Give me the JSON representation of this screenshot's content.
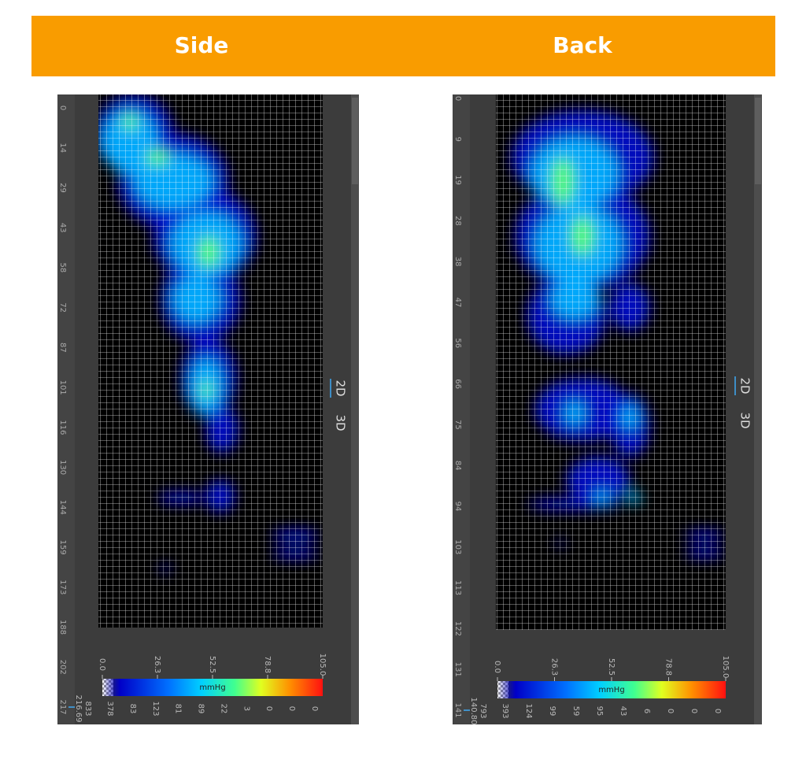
{
  "header": {
    "left": "Side",
    "right": "Back"
  },
  "panels": [
    {
      "axis_labels": [
        "0",
        "14",
        "29",
        "43",
        "58",
        "72",
        "87",
        "101",
        "116",
        "130",
        "144",
        "159",
        "173",
        "188",
        "202",
        "217"
      ],
      "tabs": [
        "2D",
        "3D"
      ],
      "legend": {
        "ticks": [
          "0.0",
          "26.3",
          "52.5",
          "78.8",
          "105.0"
        ],
        "unit": "mmHg",
        "counts": [
          "378",
          "83",
          "123",
          "81",
          "89",
          "22",
          "3",
          "0",
          "0",
          "0"
        ]
      },
      "readouts": [
        "833",
        "216.69"
      ]
    },
    {
      "axis_labels": [
        "0",
        "9",
        "19",
        "28",
        "38",
        "47",
        "56",
        "66",
        "75",
        "84",
        "94",
        "103",
        "113",
        "122",
        "131",
        "141"
      ],
      "tabs": [
        "2D",
        "3D"
      ],
      "legend": {
        "ticks": [
          "0.0",
          "26.3",
          "52.5",
          "78.8",
          "105.0"
        ],
        "unit": "mmHg",
        "counts": [
          "393",
          "124",
          "99",
          "59",
          "95",
          "43",
          "6",
          "0",
          "0",
          "0"
        ]
      },
      "readouts": [
        "793",
        "140.80"
      ]
    }
  ]
}
